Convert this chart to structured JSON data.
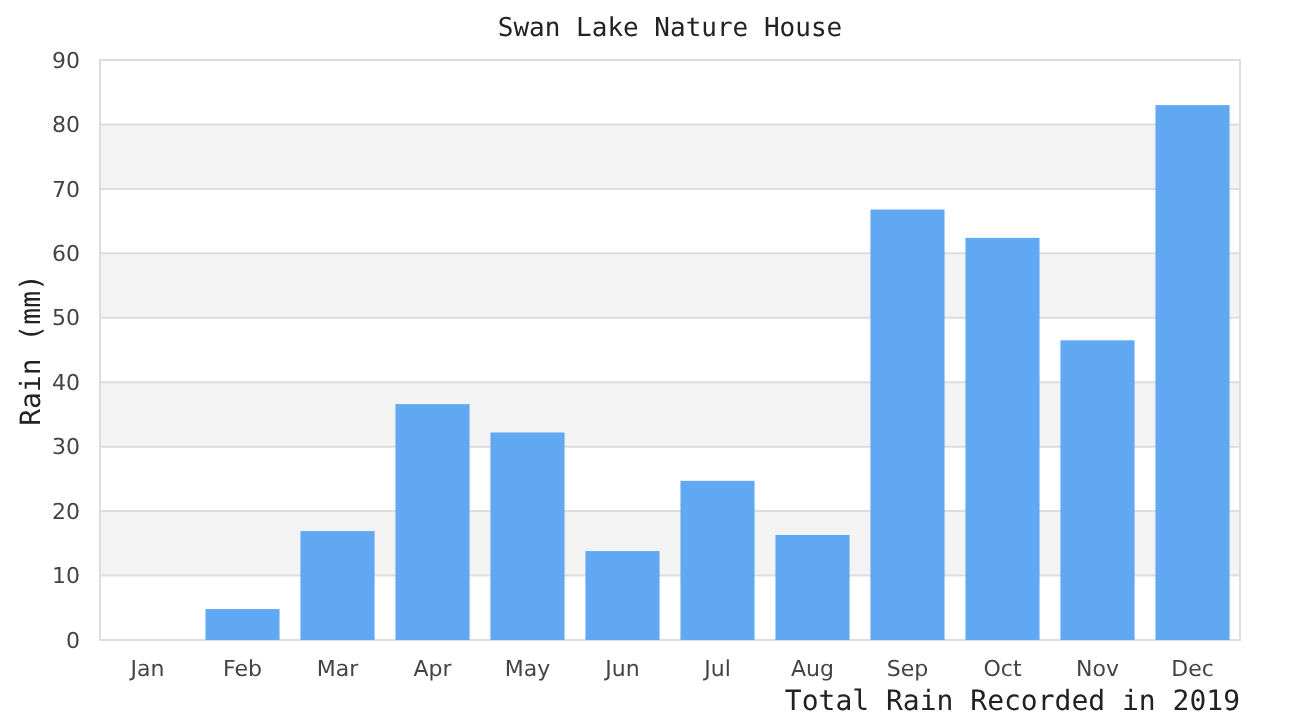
{
  "chart_data": {
    "type": "bar",
    "title": "Swan Lake Nature House",
    "ylabel": "Rain (mm)",
    "xlabel": "Total Rain Recorded in 2019",
    "categories": [
      "Jan",
      "Feb",
      "Mar",
      "Apr",
      "May",
      "Jun",
      "Jul",
      "Aug",
      "Sep",
      "Oct",
      "Nov",
      "Dec"
    ],
    "values": [
      0,
      4.8,
      16.9,
      36.6,
      32.2,
      13.8,
      24.7,
      16.3,
      66.8,
      62.4,
      46.5,
      83.0
    ],
    "color": "#61a8f3",
    "ylim": [
      0,
      90
    ],
    "yticks": [
      0,
      10,
      20,
      30,
      40,
      50,
      60,
      70,
      80,
      90
    ],
    "grid": "y"
  }
}
